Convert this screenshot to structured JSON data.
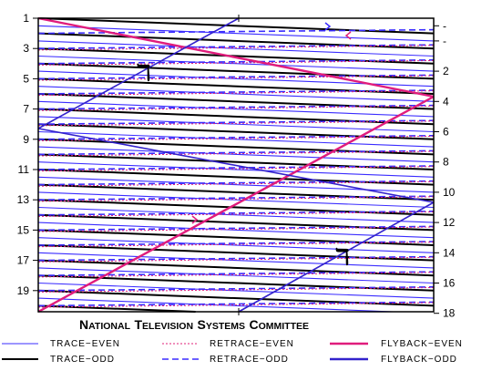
{
  "title_initials": [
    "N",
    "T",
    "S",
    "C"
  ],
  "title_rests": [
    "ATIONAL",
    "ELEVISION",
    "YSTEMS",
    "OMMITTEE"
  ],
  "left_axis": {
    "labels": [
      "1",
      "3",
      "5",
      "7",
      "9",
      "11",
      "13",
      "15",
      "17",
      "19"
    ],
    "lines": [
      1,
      3,
      5,
      7,
      9,
      11,
      13,
      15,
      17,
      19
    ]
  },
  "right_axis": {
    "labels": [
      "-",
      "-",
      "2",
      "4",
      "6",
      "8",
      "10",
      "12",
      "14",
      "16",
      "18"
    ],
    "lines": [
      1.5,
      2.5,
      4.5,
      6.5,
      8.5,
      10.5,
      12.5,
      14.5,
      16.5,
      18.5,
      20.5
    ]
  },
  "colors": {
    "trace_even": "#3a2cff",
    "trace_odd": "#000000",
    "retrace_even": "#e0207a",
    "retrace_odd": "#3a2cff",
    "flyback_even": "#e01c7c",
    "flyback_odd": "#3322cc",
    "frame": "#000000"
  },
  "legend": {
    "trace_even": "TRACE−EVEN",
    "trace_odd": "TRACE−ODD",
    "retrace_even": "RETRACE−EVEN",
    "retrace_odd": "RETRACE−ODD",
    "flyback_even": "FLYBACK−EVEN",
    "flyback_odd": "FLYBACK−ODD"
  },
  "markers": {
    "retrace_symbol": "ℸ"
  }
}
